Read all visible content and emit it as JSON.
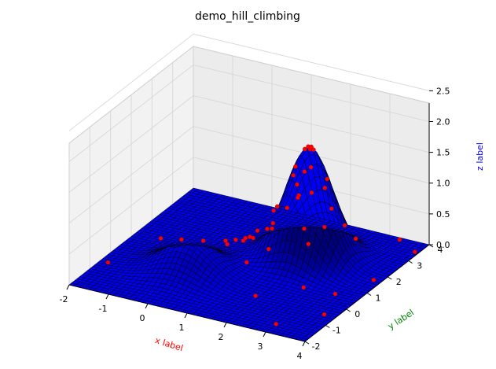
{
  "chart_data": {
    "type": "surface3d",
    "title": "demo_hill_climbing",
    "xlabel": "x label",
    "ylabel": "y label",
    "zlabel": "z label",
    "xlabel_color": "#ff0000",
    "ylabel_color": "#008000",
    "zlabel_color": "#0000ff",
    "xlim": [
      -2,
      4
    ],
    "ylim": [
      -2,
      4
    ],
    "zlim": [
      0,
      2.5
    ],
    "xticks": [
      "-2",
      "-1",
      "0",
      "1",
      "2",
      "3",
      "4"
    ],
    "yticks": [
      "-2",
      "-1",
      "0",
      "1",
      "2",
      "3",
      "4"
    ],
    "zticks": [
      "0.0",
      "0.5",
      "1.0",
      "1.5",
      "2.0",
      "2.5"
    ],
    "grid": true,
    "surface_color": "#0000cc",
    "marker_color": "#ff0000",
    "surface": {
      "description_function": "sum of two gaussian hills",
      "hills": [
        {
          "cx": 2,
          "cy": 2,
          "height": 1.8,
          "sigma": 0.55
        },
        {
          "cx": 0,
          "cy": 0,
          "height": 0.5,
          "sigma": 0.6
        }
      ]
    },
    "points": [
      {
        "x": 2.0,
        "y": 2.0,
        "z": 1.8
      },
      {
        "x": 1.95,
        "y": 2.05,
        "z": 1.79
      },
      {
        "x": 2.05,
        "y": 1.95,
        "z": 1.79
      },
      {
        "x": 1.9,
        "y": 1.98,
        "z": 1.76
      },
      {
        "x": 2.1,
        "y": 2.02,
        "z": 1.77
      },
      {
        "x": 2.0,
        "y": 2.1,
        "z": 1.78
      },
      {
        "x": 1.7,
        "y": 1.8,
        "z": 1.35
      },
      {
        "x": 1.6,
        "y": 2.1,
        "z": 1.4
      },
      {
        "x": 2.3,
        "y": 2.3,
        "z": 1.25
      },
      {
        "x": 1.4,
        "y": 1.6,
        "z": 0.85
      },
      {
        "x": 1.5,
        "y": 1.2,
        "z": 0.7
      },
      {
        "x": 1.2,
        "y": 1.8,
        "z": 0.7
      },
      {
        "x": 1.0,
        "y": 1.4,
        "z": 0.45
      },
      {
        "x": 0.9,
        "y": 0.9,
        "z": 0.4
      },
      {
        "x": 1.1,
        "y": 1.0,
        "z": 0.45
      },
      {
        "x": 0.8,
        "y": 1.2,
        "z": 0.35
      },
      {
        "x": 1.3,
        "y": 1.3,
        "z": 0.55
      },
      {
        "x": 0.6,
        "y": 0.7,
        "z": 0.35
      },
      {
        "x": 0.7,
        "y": 1.6,
        "z": 0.25
      },
      {
        "x": 1.6,
        "y": 0.8,
        "z": 0.4
      },
      {
        "x": 1.8,
        "y": 2.5,
        "z": 0.9
      },
      {
        "x": 2.6,
        "y": 1.6,
        "z": 0.7
      },
      {
        "x": 2.4,
        "y": 1.2,
        "z": 0.5
      },
      {
        "x": 1.2,
        "y": 0.5,
        "z": 0.2
      },
      {
        "x": 0.4,
        "y": 1.0,
        "z": 0.3
      },
      {
        "x": 2.2,
        "y": 2.7,
        "z": 0.65
      },
      {
        "x": 2.8,
        "y": 2.2,
        "z": 0.6
      },
      {
        "x": 0.2,
        "y": 0.3,
        "z": 0.45
      },
      {
        "x": -0.3,
        "y": 0.2,
        "z": 0.42
      },
      {
        "x": -1.3,
        "y": 1.1,
        "z": 0.05
      },
      {
        "x": -1.8,
        "y": -0.5,
        "z": 0.0
      },
      {
        "x": 3.0,
        "y": -1.5,
        "z": 0.0
      },
      {
        "x": 3.7,
        "y": -0.5,
        "z": 0.0
      },
      {
        "x": 3.9,
        "y": 3.5,
        "z": 0.0
      },
      {
        "x": 3.3,
        "y": 3.9,
        "z": 0.0
      },
      {
        "x": 3.8,
        "y": 1.7,
        "z": 0.0
      },
      {
        "x": 2.7,
        "y": 0.4,
        "z": 0.05
      },
      {
        "x": 1.9,
        "y": -0.4,
        "z": 0.0
      },
      {
        "x": 3.4,
        "y": 0.6,
        "z": 0.0
      },
      {
        "x": 2.5,
        "y": 3.3,
        "z": 0.05
      },
      {
        "x": 1.4,
        "y": 2.9,
        "z": 0.15
      },
      {
        "x": 1.7,
        "y": 1.5,
        "z": 0.9
      },
      {
        "x": 1.85,
        "y": 1.7,
        "z": 1.25
      },
      {
        "x": 2.15,
        "y": 1.8,
        "z": 1.55
      },
      {
        "x": 1.75,
        "y": 2.25,
        "z": 1.3
      },
      {
        "x": 2.4,
        "y": 2.0,
        "z": 1.2
      },
      {
        "x": 2.0,
        "y": 1.5,
        "z": 1.15
      },
      {
        "x": 1.5,
        "y": 2.4,
        "z": 0.8
      },
      {
        "x": 0.5,
        "y": 1.3,
        "z": 0.25
      },
      {
        "x": 1.0,
        "y": 2.1,
        "z": 0.3
      }
    ]
  }
}
